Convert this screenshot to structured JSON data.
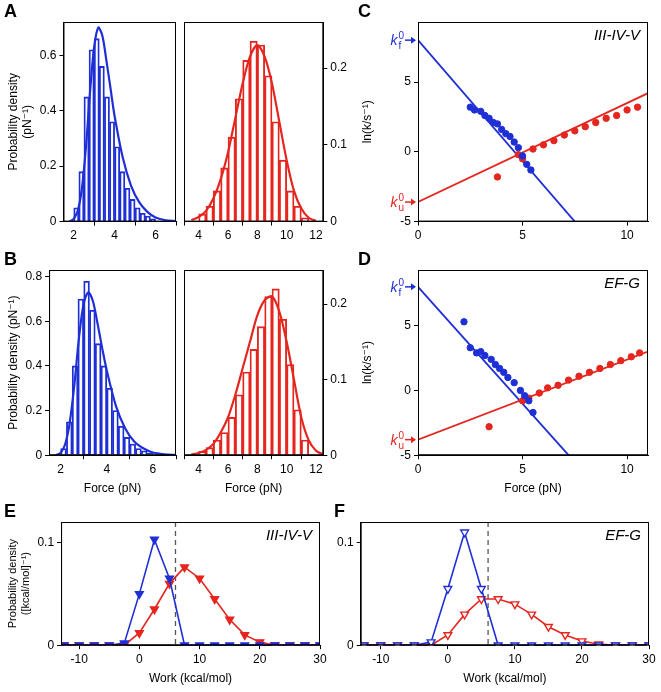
{
  "chart_data": [
    {
      "panel": "A",
      "type": "histogram",
      "y_label": "Probability density (pN⁻¹)",
      "color": "#1f2fd6",
      "bins": [
        2,
        2.25,
        2.5,
        2.75,
        3,
        3.25,
        3.5,
        3.75,
        4,
        4.25,
        4.5,
        4.75,
        5,
        5.25,
        5.5,
        5.75,
        6
      ],
      "values": [
        0.05,
        0.18,
        0.45,
        0.62,
        0.66,
        0.56,
        0.45,
        0.36,
        0.27,
        0.18,
        0.12,
        0.08,
        0.05,
        0.03,
        0.02,
        0.01
      ],
      "fit": {
        "x": [
          1.8,
          2.0,
          2.2,
          2.4,
          2.6,
          2.8,
          3.0,
          3.2,
          3.4,
          3.6,
          3.8,
          4.0,
          4.4,
          4.8,
          5.2,
          5.6,
          6.0,
          6.5,
          7.0
        ],
        "values": [
          0,
          0.01,
          0.04,
          0.12,
          0.27,
          0.47,
          0.63,
          0.7,
          0.67,
          0.58,
          0.48,
          0.38,
          0.23,
          0.13,
          0.07,
          0.035,
          0.015,
          0.005,
          0.002
        ]
      },
      "xlim": [
        1.5,
        7
      ],
      "xticks": [
        2,
        4,
        6
      ],
      "ylim": [
        0,
        0.72
      ],
      "yticks": [
        0,
        0.2,
        0.4,
        0.6
      ],
      "grid": false
    },
    {
      "type": "histogram",
      "color": "#e5261f",
      "bins": [
        4,
        4.5,
        5,
        5.5,
        6,
        6.5,
        7,
        7.5,
        8,
        8.5,
        9,
        9.5,
        10,
        10.5,
        11,
        11.5
      ],
      "values": [
        0.01,
        0.02,
        0.04,
        0.07,
        0.11,
        0.16,
        0.21,
        0.235,
        0.23,
        0.19,
        0.13,
        0.08,
        0.04,
        0.02,
        0.005
      ],
      "fit": {
        "x": [
          3.5,
          4,
          4.5,
          5,
          5.5,
          6,
          6.5,
          7,
          7.5,
          8,
          8.5,
          9,
          9.5,
          10,
          10.5,
          11,
          11.5,
          12
        ],
        "values": [
          0.002,
          0.006,
          0.014,
          0.03,
          0.055,
          0.09,
          0.135,
          0.18,
          0.215,
          0.23,
          0.215,
          0.18,
          0.13,
          0.08,
          0.04,
          0.017,
          0.005,
          0.001
        ]
      },
      "xlim": [
        3,
        12.5
      ],
      "xticks": [
        4,
        6,
        8,
        10,
        12
      ],
      "y2lim": [
        0,
        0.26
      ],
      "y2ticks": [
        0,
        0.1,
        0.2
      ],
      "grid": false
    },
    {
      "panel": "B",
      "type": "histogram",
      "x_label": "Force (pN)",
      "y_label": "Probability density (pN⁻¹)",
      "color": "#1f2fd6",
      "bins": [
        2,
        2.25,
        2.5,
        2.75,
        3,
        3.25,
        3.5,
        3.75,
        4,
        4.25,
        4.5,
        4.75,
        5,
        5.25,
        5.5,
        5.75,
        6
      ],
      "values": [
        0.03,
        0.15,
        0.4,
        0.7,
        0.78,
        0.65,
        0.5,
        0.4,
        0.3,
        0.2,
        0.13,
        0.08,
        0.05,
        0.03,
        0.02,
        0.01
      ],
      "fit": {
        "x": [
          1.8,
          2.0,
          2.2,
          2.4,
          2.6,
          2.8,
          3.0,
          3.2,
          3.4,
          3.6,
          3.8,
          4.0,
          4.4,
          4.8,
          5.2,
          5.6,
          6.0,
          6.5,
          7.0
        ],
        "values": [
          0,
          0.01,
          0.05,
          0.15,
          0.32,
          0.53,
          0.68,
          0.73,
          0.69,
          0.59,
          0.48,
          0.38,
          0.22,
          0.12,
          0.06,
          0.03,
          0.012,
          0.004,
          0.001
        ]
      },
      "xlim": [
        1.5,
        7
      ],
      "xticks": [
        2,
        4,
        6
      ],
      "ylim": [
        0,
        0.83
      ],
      "yticks": [
        0,
        0.2,
        0.4,
        0.6,
        0.8
      ],
      "grid": false
    },
    {
      "type": "histogram",
      "x_label": "Force (pN)",
      "color": "#e5261f",
      "bins": [
        4,
        4.5,
        5,
        5.5,
        6,
        6.5,
        7,
        7.5,
        8,
        8.5,
        9,
        9.5,
        10,
        10.5,
        11,
        11.5
      ],
      "values": [
        0.005,
        0.01,
        0.02,
        0.03,
        0.05,
        0.08,
        0.11,
        0.14,
        0.17,
        0.21,
        0.22,
        0.18,
        0.12,
        0.06,
        0.02
      ],
      "fit": {
        "x": [
          3.5,
          4,
          4.5,
          5,
          5.5,
          6,
          6.5,
          7,
          7.5,
          8,
          8.5,
          9,
          9.5,
          10,
          10.5,
          11,
          11.5,
          12,
          12.5
        ],
        "values": [
          0.001,
          0.003,
          0.007,
          0.015,
          0.03,
          0.05,
          0.08,
          0.115,
          0.15,
          0.185,
          0.205,
          0.21,
          0.19,
          0.15,
          0.1,
          0.05,
          0.02,
          0.006,
          0.001
        ]
      },
      "xlim": [
        3,
        12.5
      ],
      "xticks": [
        4,
        6,
        8,
        10,
        12
      ],
      "y2lim": [
        0,
        0.245
      ],
      "y2ticks": [
        0,
        0.1,
        0.2
      ],
      "grid": false
    },
    {
      "panel": "C",
      "type": "scatter",
      "annotation": "III-IV-V",
      "y_label": "ln(k/s⁻¹)",
      "series": [
        {
          "type": "scatter",
          "color": "#1f2fd6",
          "marker": "circle",
          "x": [
            2.5,
            2.7,
            3.0,
            3.2,
            3.4,
            3.6,
            3.8,
            4.0,
            4.2,
            4.4,
            4.6,
            4.8,
            5.0,
            5.2,
            5.4
          ],
          "values": [
            3.2,
            3.0,
            2.9,
            2.6,
            2.4,
            2.1,
            2.0,
            1.6,
            1.3,
            1.1,
            0.7,
            0.3,
            -0.3,
            -0.9,
            -1.3
          ]
        },
        {
          "type": "scatter",
          "color": "#e5261f",
          "marker": "circle",
          "x": [
            3.8,
            4.8,
            5.0,
            5.5,
            6.0,
            6.5,
            7.0,
            7.5,
            8.0,
            8.5,
            9.0,
            9.5,
            10.0,
            10.5
          ],
          "values": [
            -1.8,
            -0.2,
            -0.5,
            0.2,
            0.5,
            0.8,
            1.2,
            1.5,
            1.8,
            2.1,
            2.4,
            2.6,
            3.0,
            3.2
          ]
        },
        {
          "type": "line",
          "color": "#1f2fd6",
          "line_style": "solid",
          "x": [
            0,
            7.5
          ],
          "values": [
            8,
            -5
          ]
        },
        {
          "type": "line",
          "color": "#e5261f",
          "line_style": "solid",
          "x": [
            0,
            11
          ],
          "values": [
            -3.6,
            4.2
          ]
        }
      ],
      "axis_marks": [
        {
          "text": "k",
          "sub": "f",
          "sup": "0",
          "y": 8,
          "color": "#1f2fd6"
        },
        {
          "text": "k",
          "sub": "u",
          "sup": "0",
          "y": -3.6,
          "color": "#e5261f"
        }
      ],
      "xlim": [
        0,
        11
      ],
      "xticks": [
        0,
        5,
        10
      ],
      "ylim": [
        -5,
        9.3
      ],
      "yticks": [
        -5,
        0,
        5
      ],
      "grid": false
    },
    {
      "panel": "D",
      "type": "scatter",
      "annotation": "EF-G",
      "x_label": "Force (pN)",
      "y_label": "ln(k/s⁻¹)",
      "series": [
        {
          "type": "scatter",
          "color": "#1f2fd6",
          "marker": "circle",
          "x": [
            2.2,
            2.5,
            2.8,
            3.0,
            3.2,
            3.5,
            3.7,
            3.9,
            4.1,
            4.3,
            4.6,
            4.9,
            5.1,
            5.3,
            5.5
          ],
          "values": [
            5.3,
            3.3,
            2.9,
            3.0,
            2.7,
            2.4,
            2.0,
            1.7,
            1.4,
            1.0,
            0.6,
            0.0,
            -0.4,
            -0.8,
            -1.7
          ]
        },
        {
          "type": "scatter",
          "color": "#e5261f",
          "marker": "circle",
          "x": [
            3.4,
            5.0,
            5.3,
            5.8,
            6.2,
            6.7,
            7.2,
            7.7,
            8.2,
            8.7,
            9.2,
            9.7,
            10.2,
            10.6
          ],
          "values": [
            -2.8,
            -0.8,
            -0.6,
            -0.2,
            0.2,
            0.4,
            0.8,
            1.1,
            1.4,
            1.7,
            2.0,
            2.3,
            2.6,
            2.9
          ]
        },
        {
          "type": "line",
          "color": "#1f2fd6",
          "line_style": "solid",
          "x": [
            0,
            7.2
          ],
          "values": [
            8,
            -5
          ]
        },
        {
          "type": "line",
          "color": "#e5261f",
          "line_style": "solid",
          "x": [
            0,
            11
          ],
          "values": [
            -3.8,
            3.0
          ]
        }
      ],
      "axis_marks": [
        {
          "text": "k",
          "sub": "f",
          "sup": "0",
          "y": 8,
          "color": "#1f2fd6"
        },
        {
          "text": "k",
          "sub": "u",
          "sup": "0",
          "y": -3.8,
          "color": "#e5261f"
        }
      ],
      "xlim": [
        0,
        11
      ],
      "xticks": [
        0,
        5,
        10
      ],
      "ylim": [
        -5,
        9.3
      ],
      "yticks": [
        -5,
        0,
        5
      ],
      "grid": false
    },
    {
      "panel": "E",
      "type": "line",
      "annotation": "III-IV-V",
      "x_label": "Work (kcal/mol)",
      "y_label": "Probability density ([kcal/mol]⁻¹)",
      "x": [
        -12.5,
        -10,
        -7.5,
        -5,
        -2.5,
        0,
        2.5,
        5,
        7.5,
        10,
        12.5,
        15,
        17.5,
        20,
        22.5,
        25,
        27.5,
        30
      ],
      "series": [
        {
          "color": "#1f2fd6",
          "marker": "triangle-down-filled",
          "values": [
            0,
            0,
            0,
            0,
            0.002,
            0.05,
            0.103,
            0.065,
            0,
            0,
            0,
            0,
            0,
            0,
            0,
            0,
            0,
            0
          ]
        },
        {
          "color": "#e5261f",
          "marker": "triangle-down-filled",
          "values": [
            0,
            0,
            0,
            0,
            0,
            0.012,
            0.035,
            0.06,
            0.076,
            0.065,
            0.045,
            0.025,
            0.01,
            0.003,
            0,
            0,
            0,
            0
          ]
        }
      ],
      "reference_line": {
        "x": 6,
        "line_style": "dashed",
        "color": "#555555"
      },
      "xlim": [
        -13,
        30
      ],
      "xticks": [
        -10,
        0,
        10,
        20,
        30
      ],
      "ylim": [
        0,
        0.12
      ],
      "yticks": [
        0,
        0.1
      ],
      "grid": false
    },
    {
      "panel": "F",
      "type": "line",
      "annotation": "EF-G",
      "x_label": "Work (kcal/mol)",
      "x": [
        -12.5,
        -10,
        -7.5,
        -5,
        -2.5,
        0,
        2.5,
        5,
        7.5,
        10,
        12.5,
        15,
        17.5,
        20,
        22.5,
        25,
        27.5,
        30
      ],
      "series": [
        {
          "color": "#1f2fd6",
          "marker": "triangle-down-open",
          "values": [
            0,
            0,
            0,
            0,
            0.003,
            0.055,
            0.11,
            0.055,
            0,
            0,
            0,
            0,
            0,
            0,
            0,
            0,
            0,
            0
          ]
        },
        {
          "color": "#e5261f",
          "marker": "triangle-down-open",
          "values": [
            0,
            0,
            0,
            0,
            0,
            0.01,
            0.03,
            0.045,
            0.045,
            0.04,
            0.03,
            0.018,
            0.01,
            0.004,
            0.001,
            0,
            0,
            0
          ]
        }
      ],
      "reference_line": {
        "x": 6,
        "line_style": "dashed",
        "color": "#555555"
      },
      "xlim": [
        -13,
        30
      ],
      "xticks": [
        -10,
        0,
        10,
        20,
        30
      ],
      "ylim": [
        0,
        0.12
      ],
      "yticks": [
        0,
        0.1
      ],
      "grid": false
    }
  ]
}
